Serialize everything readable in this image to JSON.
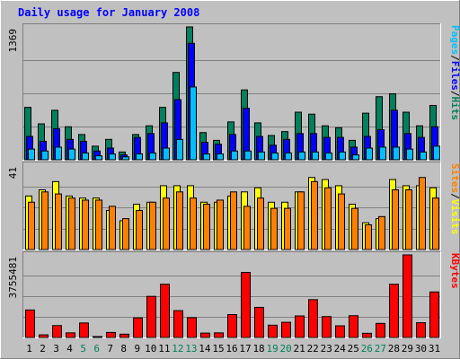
{
  "chart_data": {
    "type": "bar",
    "title": "Daily usage for January 2008",
    "categories": [
      "1",
      "2",
      "3",
      "4",
      "5",
      "6",
      "7",
      "8",
      "9",
      "10",
      "11",
      "12",
      "13",
      "14",
      "15",
      "16",
      "17",
      "18",
      "19",
      "20",
      "21",
      "22",
      "23",
      "24",
      "25",
      "26",
      "27",
      "28",
      "29",
      "30",
      "31"
    ],
    "weekend_days": [
      "5",
      "6",
      "12",
      "13",
      "19",
      "20",
      "26",
      "27"
    ],
    "panels": [
      {
        "id": "hits",
        "ymax": 1369,
        "ymax_label": "1369",
        "axis_labels": [
          "Pages",
          "Files",
          "Hits"
        ],
        "series": [
          {
            "name": "Hits",
            "color": "#00805c",
            "values": [
              540,
              370,
              510,
              340,
              260,
              140,
              210,
              80,
              260,
              350,
              540,
              900,
              1369,
              280,
              200,
              390,
              720,
              380,
              250,
              290,
              490,
              470,
              350,
              330,
              200,
              480,
              650,
              680,
              490,
              350,
              560
            ]
          },
          {
            "name": "Files",
            "color": "#0000ff",
            "values": [
              240,
              190,
              320,
              210,
              190,
              90,
              120,
              50,
              230,
              270,
              380,
              620,
              1200,
              180,
              160,
              260,
              530,
              240,
              150,
              210,
              270,
              270,
              230,
              230,
              130,
              240,
              310,
              510,
              270,
              230,
              340
            ]
          },
          {
            "name": "Pages",
            "color": "#00bfff",
            "values": [
              110,
              90,
              130,
              110,
              70,
              40,
              60,
              30,
              60,
              70,
              120,
              210,
              750,
              60,
              60,
              90,
              90,
              80,
              70,
              70,
              80,
              80,
              70,
              80,
              50,
              120,
              130,
              130,
              110,
              80,
              140
            ]
          }
        ]
      },
      {
        "id": "visits",
        "ymax": 41,
        "ymax_label": "41",
        "axis_labels": [
          "Sites",
          "Visits"
        ],
        "series": [
          {
            "name": "Visits",
            "color": "#ffff00",
            "values": [
              26,
              29,
              33,
              26,
              25,
              25,
              19,
              14,
              22,
              23,
              31,
              31,
              31,
              23,
              23,
              26,
              28,
              30,
              23,
              23,
              28,
              35,
              34,
              31,
              22,
              13,
              15,
              34,
              31,
              31,
              30
            ]
          },
          {
            "name": "Sites",
            "color": "#ff8000",
            "values": [
              23,
              28,
              27,
              25,
              24,
              24,
              21,
              15,
              19,
              23,
              25,
              28,
              25,
              22,
              24,
              28,
              21,
              25,
              20,
              20,
              28,
              33,
              30,
              27,
              20,
              12,
              16,
              29,
              29,
              35,
              25
            ]
          }
        ]
      },
      {
        "id": "kbytes",
        "ymax": 3755481,
        "ymax_label": "3755481",
        "axis_labels": [
          "KBytes"
        ],
        "series": [
          {
            "name": "KBytes",
            "color": "#ff0000",
            "values": [
              1250000,
              120000,
              540000,
              210000,
              660000,
              30000,
              230000,
              150000,
              890000,
              1870000,
              2420000,
              1220000,
              900000,
              200000,
              210000,
              1040000,
              2960000,
              1370000,
              560000,
              690000,
              980000,
              1720000,
              950000,
              530000,
              990000,
              190000,
              640000,
              2420000,
              3755481,
              670000,
              2070000
            ]
          }
        ]
      }
    ]
  }
}
